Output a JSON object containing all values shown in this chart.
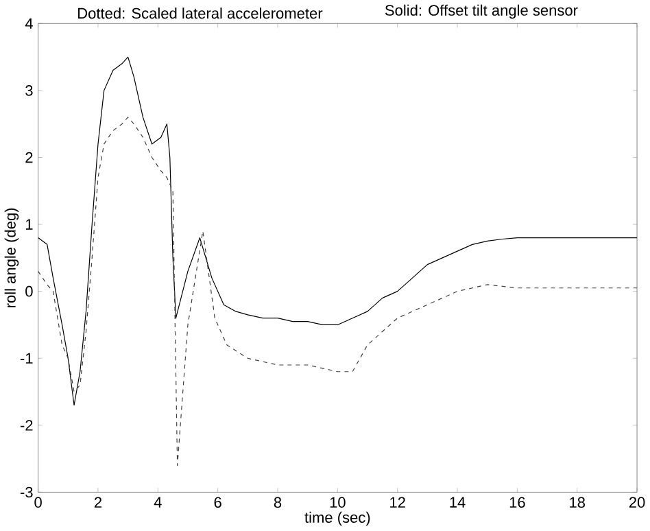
{
  "chart_data": {
    "type": "line",
    "xlabel": "time (sec)",
    "ylabel": "roll angle (deg)",
    "annotations": [
      "Dotted: Scaled lateral accelerometer",
      "Solid: Offset tilt angle sensor"
    ],
    "xlim": [
      0,
      20
    ],
    "ylim": [
      -3,
      4
    ],
    "xticks": [
      0,
      2,
      4,
      6,
      8,
      10,
      12,
      14,
      16,
      18,
      20
    ],
    "yticks": [
      -3,
      -2,
      -1,
      0,
      1,
      2,
      3,
      4
    ],
    "series": [
      {
        "color": "#000000",
        "line_style": "solid",
        "x": [
          0,
          0.3,
          0.5,
          0.8,
          1.0,
          1.2,
          1.4,
          1.6,
          1.8,
          2.0,
          2.2,
          2.5,
          2.8,
          3.0,
          3.2,
          3.5,
          3.8,
          4.1,
          4.3,
          4.4,
          4.5,
          4.6,
          5.0,
          5.4,
          5.8,
          6.2,
          6.6,
          7.0,
          7.5,
          8.0,
          8.5,
          9.0,
          9.5,
          10.0,
          10.5,
          11.0,
          11.5,
          12.0,
          12.5,
          13.0,
          13.5,
          14.0,
          14.5,
          15.0,
          15.5,
          16.0,
          17.0,
          18.0,
          19.0,
          20.0
        ],
        "values": [
          0.8,
          0.7,
          0.2,
          -0.5,
          -1.0,
          -1.7,
          -1.2,
          -0.3,
          1.0,
          2.2,
          3.0,
          3.3,
          3.4,
          3.5,
          3.2,
          2.6,
          2.2,
          2.3,
          2.5,
          2.0,
          0.5,
          -0.4,
          0.3,
          0.8,
          0.2,
          -0.2,
          -0.3,
          -0.35,
          -0.4,
          -0.4,
          -0.45,
          -0.45,
          -0.5,
          -0.5,
          -0.4,
          -0.3,
          -0.1,
          0.0,
          0.2,
          0.4,
          0.5,
          0.6,
          0.7,
          0.75,
          0.78,
          0.8,
          0.8,
          0.8,
          0.8,
          0.8
        ]
      },
      {
        "color": "#404040",
        "line_style": "dashed",
        "x": [
          0,
          0.3,
          0.5,
          0.8,
          1.0,
          1.2,
          1.4,
          1.6,
          1.8,
          2.0,
          2.2,
          2.5,
          2.8,
          3.0,
          3.2,
          3.5,
          3.8,
          4.1,
          4.3,
          4.5,
          4.65,
          5.0,
          5.5,
          5.9,
          6.3,
          7.0,
          7.5,
          8.0,
          8.5,
          9.0,
          9.5,
          10.0,
          10.5,
          11.0,
          11.5,
          12.0,
          12.5,
          13.0,
          13.5,
          14.0,
          14.5,
          15.0,
          16.0,
          17.0,
          18.0,
          19.0,
          20.0
        ],
        "values": [
          0.3,
          0.1,
          0.0,
          -0.8,
          -1.0,
          -1.5,
          -1.4,
          -0.6,
          0.5,
          1.7,
          2.2,
          2.4,
          2.5,
          2.6,
          2.5,
          2.3,
          2.0,
          1.8,
          1.7,
          1.5,
          -2.6,
          -0.5,
          0.9,
          -0.4,
          -0.8,
          -1.0,
          -1.05,
          -1.1,
          -1.1,
          -1.1,
          -1.15,
          -1.2,
          -1.2,
          -0.8,
          -0.6,
          -0.4,
          -0.3,
          -0.2,
          -0.1,
          0.0,
          0.05,
          0.1,
          0.05,
          0.05,
          0.05,
          0.05,
          0.05
        ]
      }
    ]
  }
}
